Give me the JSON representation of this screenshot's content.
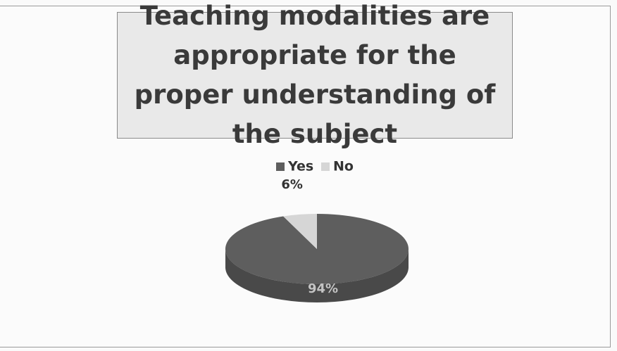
{
  "chart_data": {
    "type": "pie",
    "title": "Teaching modalities are appropriate for the proper understanding of the subject",
    "categories": [
      "Yes",
      "No"
    ],
    "values": [
      94,
      6
    ],
    "value_labels": [
      "94%",
      "6%"
    ],
    "colors": [
      "#5e5e5e",
      "#d6d6d6"
    ],
    "legend": "top"
  }
}
